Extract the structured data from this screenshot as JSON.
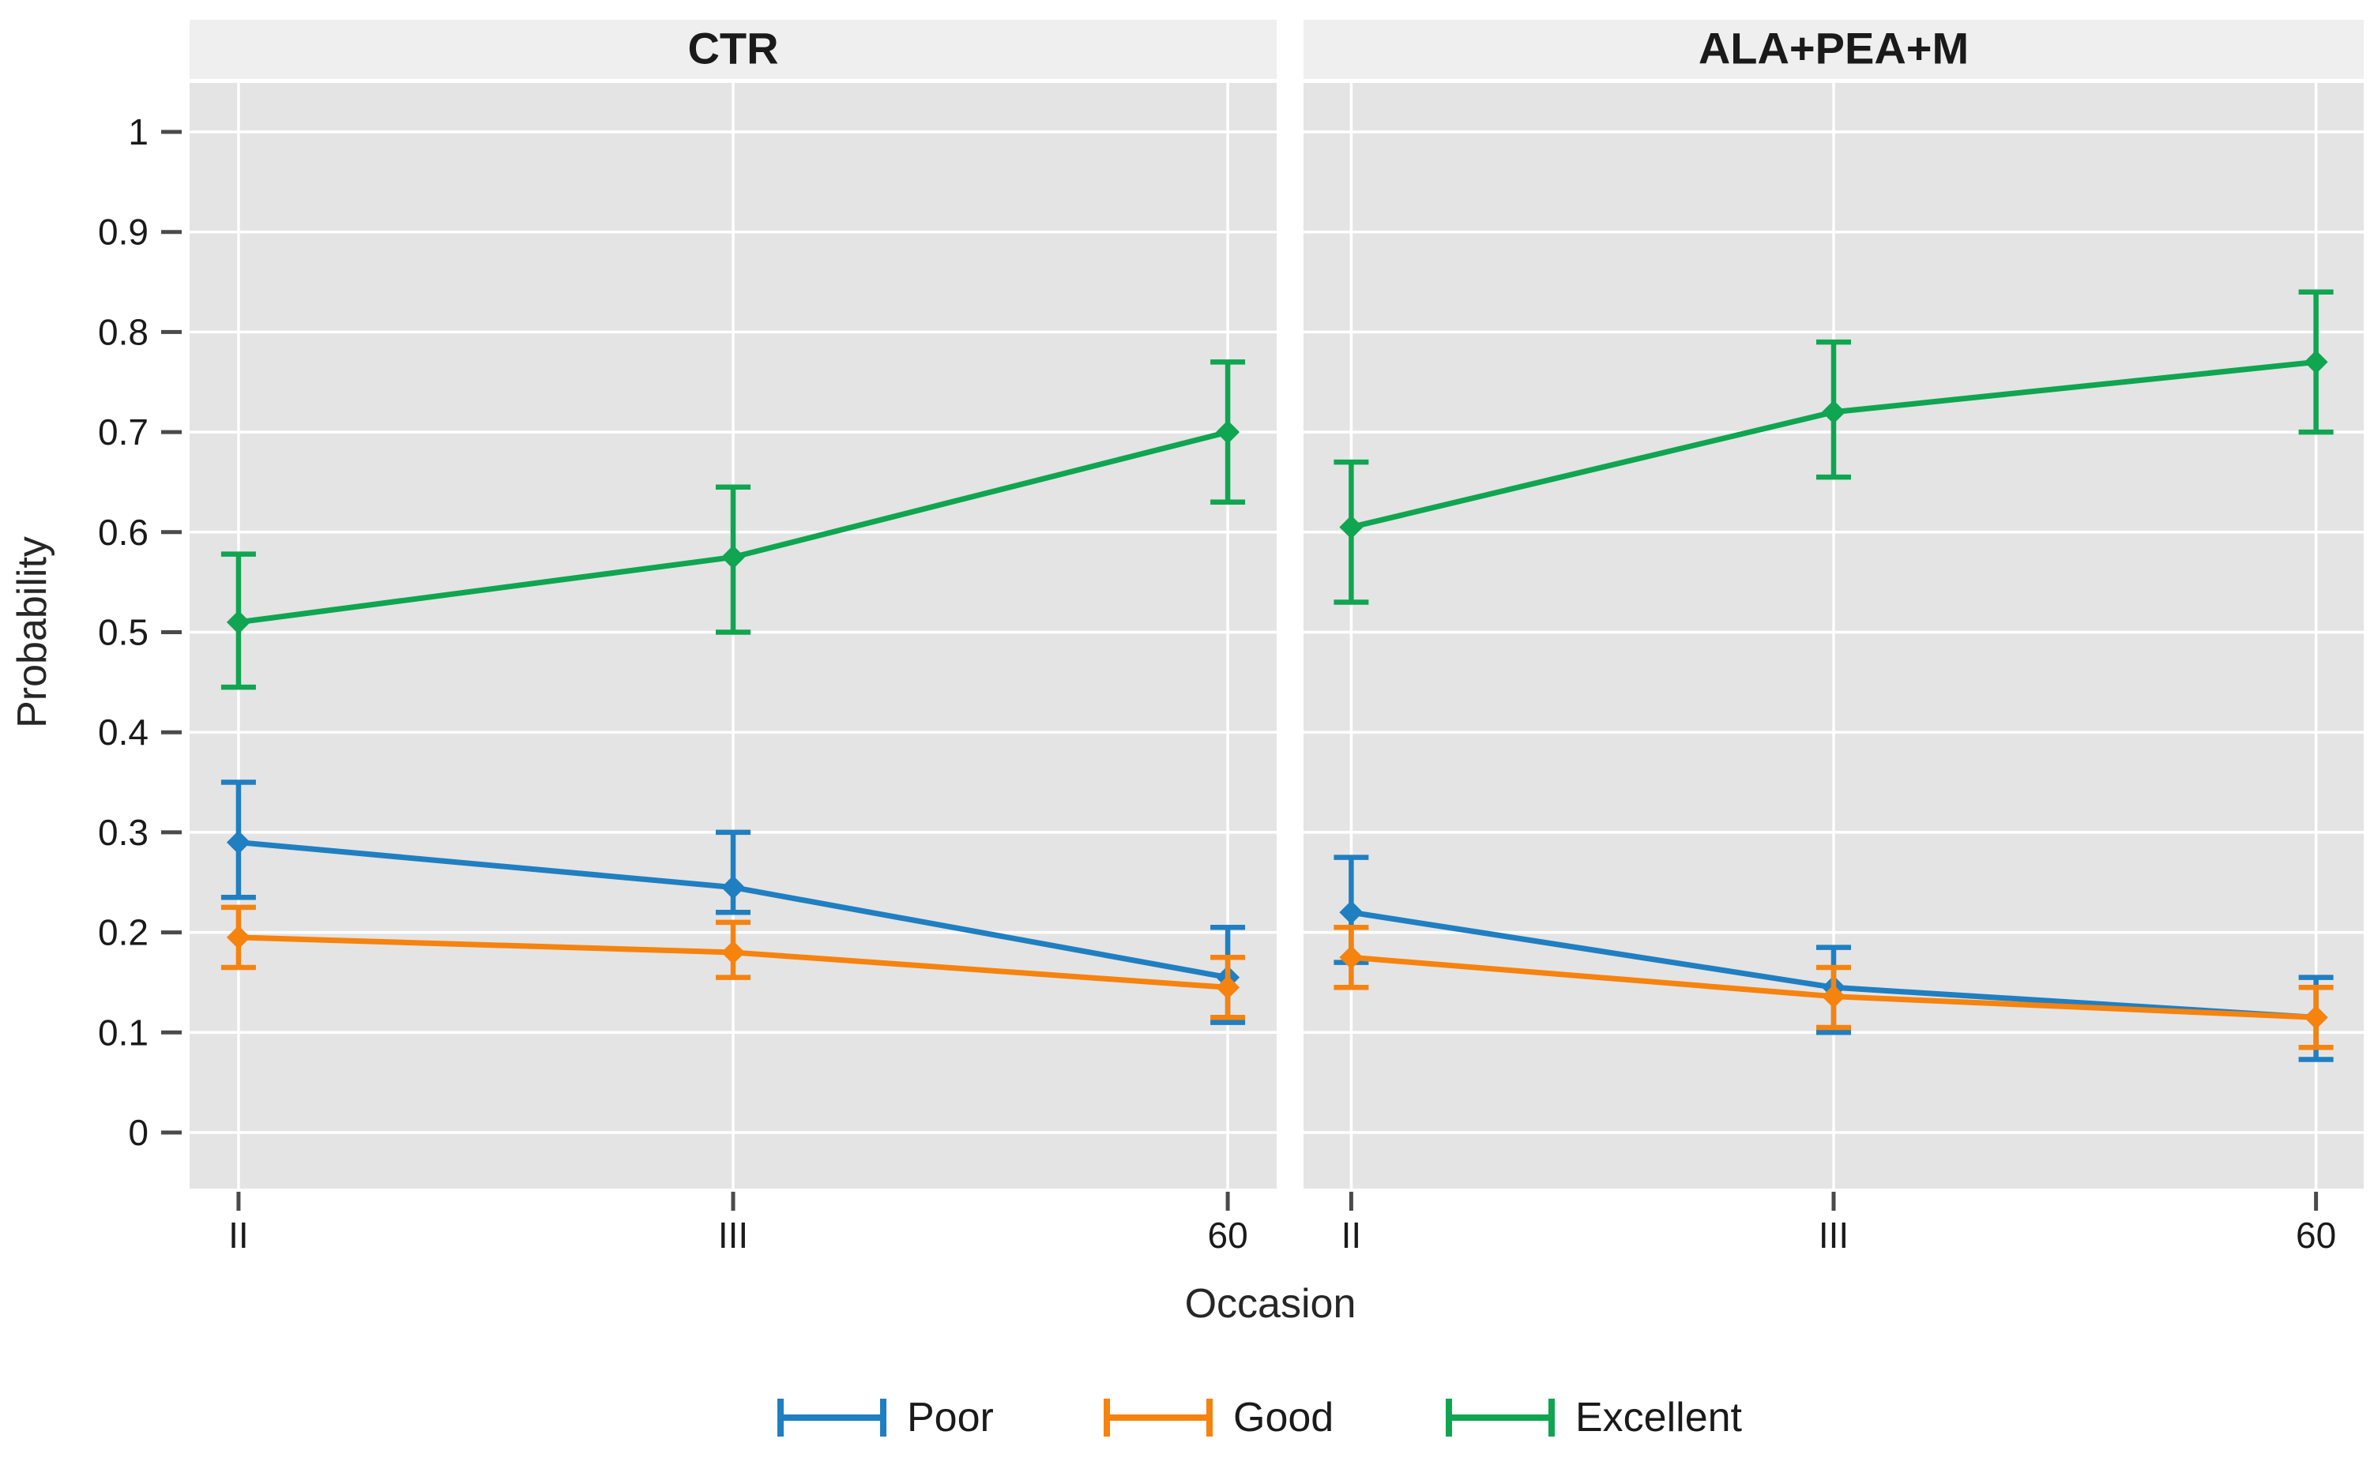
{
  "style": {
    "background": "#ffffff",
    "panel_bg": "#e4e4e4",
    "strip_bg": "#efefef",
    "grid_color": "#ffffff",
    "tick_color": "#4a4a4a",
    "text_color": "#1a1a1a",
    "axis_label_color": "#262626"
  },
  "legend": {
    "items": [
      {
        "label": "Poor",
        "color": "#1f7fc1"
      },
      {
        "label": "Good",
        "color": "#f6830e"
      },
      {
        "label": "Excellent",
        "color": "#0fa551"
      }
    ]
  },
  "chart_data": {
    "type": "line",
    "title": "",
    "xlabel": "Occasion",
    "ylabel": "Probability",
    "x_categories": [
      "II",
      "III",
      "60"
    ],
    "ylim": [
      0,
      1
    ],
    "y_ticks": [
      1,
      0.9,
      0.8,
      0.7,
      0.6,
      0.5,
      0.4,
      0.3,
      0.2,
      0.1,
      0
    ],
    "y_tick_labels": [
      "1",
      "0.9",
      "0.8",
      "0.7",
      "0.6",
      "0.5",
      "0.4",
      "0.3",
      "0.2",
      "0.1",
      "0"
    ],
    "grid": true,
    "legend_position": "bottom",
    "error_bars": true,
    "marker": "diamond",
    "facets": [
      {
        "title": "CTR",
        "series": [
          {
            "name": "Poor",
            "color": "#1f7fc1",
            "values": [
              0.29,
              0.245,
              0.155
            ],
            "ci_low": [
              0.235,
              0.22,
              0.11
            ],
            "ci_high": [
              0.35,
              0.3,
              0.205
            ]
          },
          {
            "name": "Good",
            "color": "#f6830e",
            "values": [
              0.195,
              0.18,
              0.145
            ],
            "ci_low": [
              0.165,
              0.155,
              0.115
            ],
            "ci_high": [
              0.225,
              0.21,
              0.175
            ]
          },
          {
            "name": "Excellent",
            "color": "#0fa551",
            "values": [
              0.51,
              0.575,
              0.7
            ],
            "ci_low": [
              0.445,
              0.5,
              0.63
            ],
            "ci_high": [
              0.578,
              0.645,
              0.77
            ]
          }
        ]
      },
      {
        "title": "ALA+PEA+M",
        "series": [
          {
            "name": "Poor",
            "color": "#1f7fc1",
            "values": [
              0.22,
              0.145,
              0.115
            ],
            "ci_low": [
              0.17,
              0.1,
              0.073
            ],
            "ci_high": [
              0.275,
              0.185,
              0.155
            ]
          },
          {
            "name": "Good",
            "color": "#f6830e",
            "values": [
              0.175,
              0.136,
              0.115
            ],
            "ci_low": [
              0.145,
              0.105,
              0.085
            ],
            "ci_high": [
              0.205,
              0.165,
              0.145
            ]
          },
          {
            "name": "Excellent",
            "color": "#0fa551",
            "values": [
              0.605,
              0.72,
              0.77
            ],
            "ci_low": [
              0.53,
              0.655,
              0.7
            ],
            "ci_high": [
              0.67,
              0.79,
              0.84
            ]
          }
        ]
      }
    ]
  }
}
